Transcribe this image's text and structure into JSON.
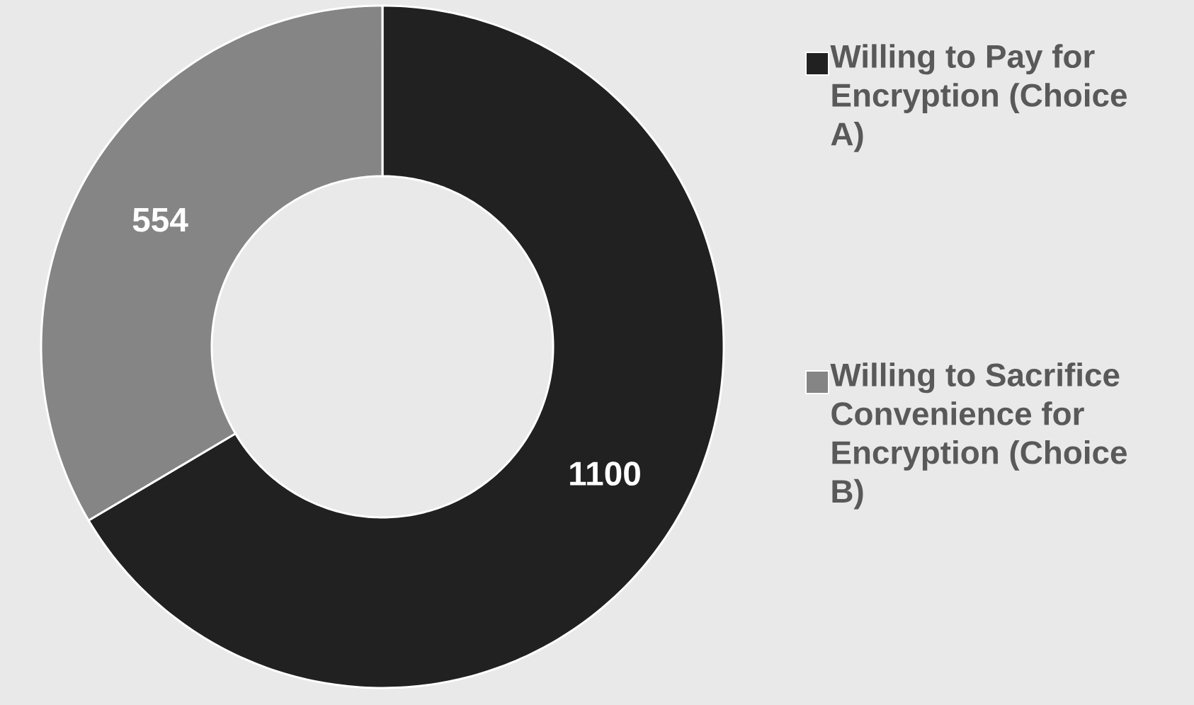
{
  "chart_data": {
    "type": "donut",
    "categories": [
      "Willing to Pay for Encryption (Choice A)",
      "Willing to Sacrifice Convenience for Encryption (Choice B)"
    ],
    "values": [
      1100,
      554
    ],
    "colors": [
      "#212121",
      "#858585"
    ],
    "data_labels": true,
    "legend": "right"
  }
}
